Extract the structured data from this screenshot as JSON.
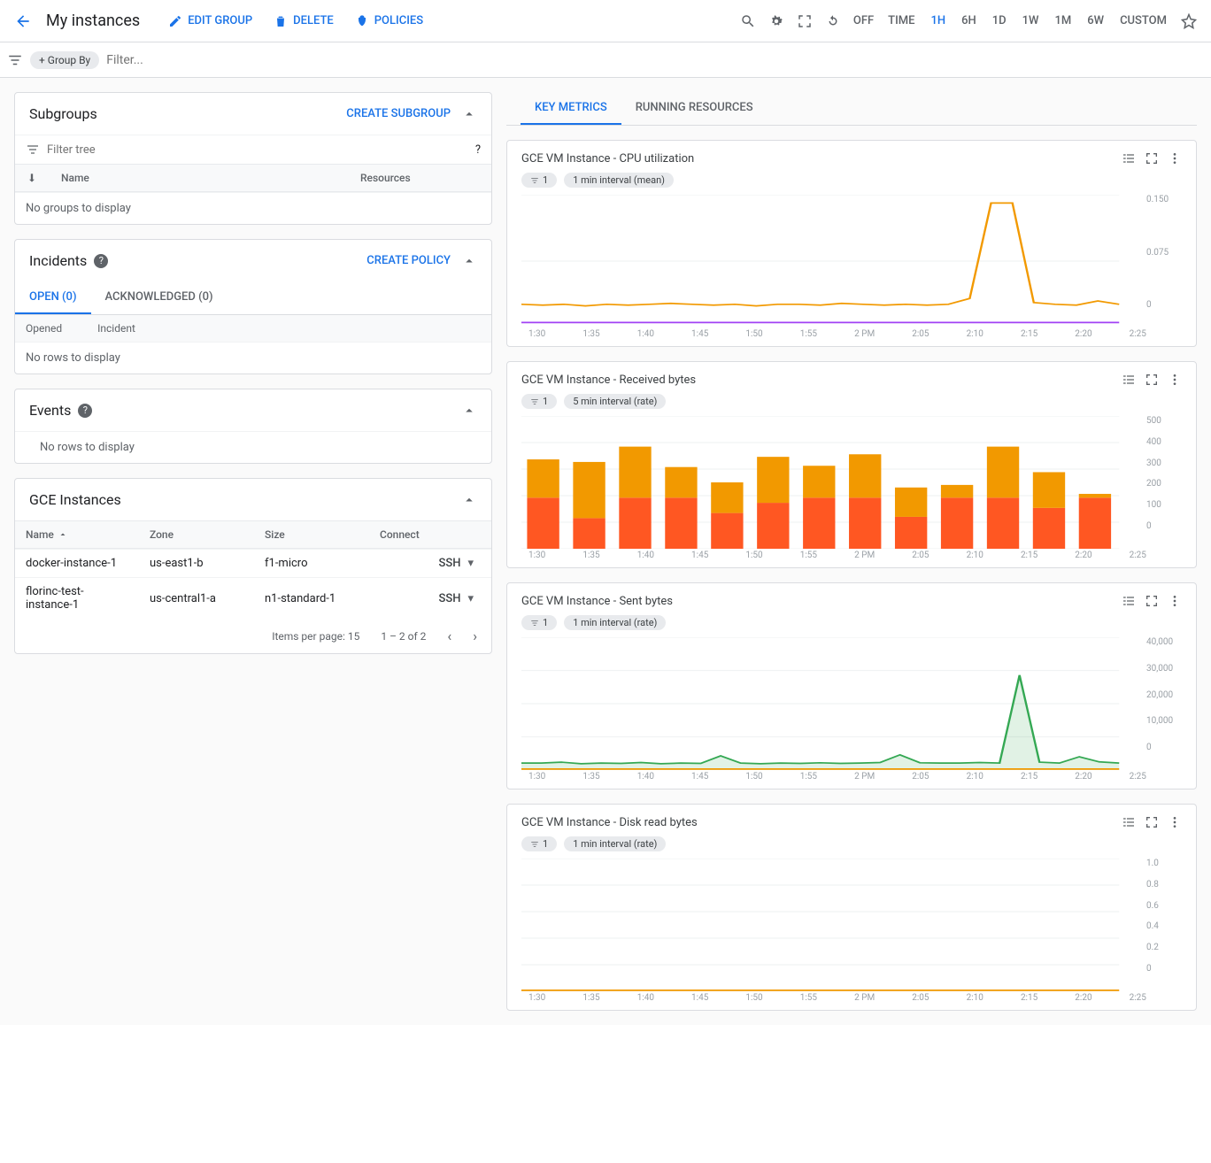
{
  "topbar": {
    "title": "My instances",
    "edit": "EDIT GROUP",
    "delete": "DELETE",
    "policies": "POLICIES",
    "off": "OFF",
    "time_label": "TIME",
    "ranges": [
      "1H",
      "6H",
      "1D",
      "1W",
      "1M",
      "6W",
      "CUSTOM"
    ],
    "active_range": "1H"
  },
  "filterbar": {
    "groupby": "+ Group By",
    "placeholder": "Filter..."
  },
  "subgroups": {
    "title": "Subgroups",
    "create": "CREATE SUBGROUP",
    "filter_placeholder": "Filter tree",
    "col_name": "Name",
    "col_resources": "Resources",
    "empty": "No groups to display"
  },
  "incidents": {
    "title": "Incidents",
    "create": "CREATE POLICY",
    "tab_open": "OPEN (0)",
    "tab_ack": "ACKNOWLEDGED (0)",
    "col_opened": "Opened",
    "col_incident": "Incident",
    "empty": "No rows to display"
  },
  "events": {
    "title": "Events",
    "empty": "No rows to display"
  },
  "instances": {
    "title": "GCE Instances",
    "col_name": "Name",
    "col_zone": "Zone",
    "col_size": "Size",
    "col_connect": "Connect",
    "rows": [
      {
        "name": "docker-instance-1",
        "zone": "us-east1-b",
        "size": "f1-micro",
        "connect": "SSH"
      },
      {
        "name": "florinc-test-instance-1",
        "zone": "us-central1-a",
        "size": "n1-standard-1",
        "connect": "SSH"
      }
    ],
    "items_per_page_label": "Items per page:",
    "items_per_page": "15",
    "range": "1 – 2 of 2"
  },
  "righttabs": {
    "key": "KEY METRICS",
    "run": "RUNNING RESOURCES"
  },
  "xlabels": [
    "1:30",
    "1:35",
    "1:40",
    "1:45",
    "1:50",
    "1:55",
    "2 PM",
    "2:05",
    "2:10",
    "2:15",
    "2:20",
    "2:25"
  ],
  "charts": {
    "cpu": {
      "type": "line",
      "title": "GCE VM Instance - CPU utilization",
      "filter_chip": "1",
      "interval": "1 min interval (mean)",
      "ylabels": [
        "0.150",
        "0.075",
        "0"
      ],
      "series1_color": "#f29900",
      "series2_color": "#a142f4",
      "series1": [
        0.028,
        0.027,
        0.028,
        0.026,
        0.028,
        0.027,
        0.028,
        0.029,
        0.028,
        0.027,
        0.028,
        0.026,
        0.028,
        0.028,
        0.027,
        0.029,
        0.028,
        0.027,
        0.028,
        0.027,
        0.028,
        0.035,
        0.15,
        0.15,
        0.03,
        0.028,
        0.027,
        0.032,
        0.028
      ],
      "series2": [
        0.006,
        0.006,
        0.006,
        0.006,
        0.006,
        0.006,
        0.006,
        0.006,
        0.006,
        0.006,
        0.006,
        0.006,
        0.006,
        0.006,
        0.006,
        0.006,
        0.006,
        0.006,
        0.006,
        0.006,
        0.006,
        0.006,
        0.006,
        0.006,
        0.006,
        0.006,
        0.006,
        0.006,
        0.006
      ],
      "ylim": [
        0,
        0.16
      ]
    },
    "recv": {
      "type": "stacked-bar",
      "title": "GCE VM Instance - Received bytes",
      "filter_chip": "1",
      "interval": "5 min interval (rate)",
      "ylabels": [
        "500",
        "400",
        "300",
        "200",
        "100",
        "0"
      ],
      "bottom_color": "#ff5722",
      "top_color": "#f29900",
      "bars": [
        {
          "b": 200,
          "t": 150
        },
        {
          "b": 120,
          "t": 220
        },
        {
          "b": 200,
          "t": 200
        },
        {
          "b": 200,
          "t": 120
        },
        {
          "b": 140,
          "t": 120
        },
        {
          "b": 180,
          "t": 180
        },
        {
          "b": 200,
          "t": 125
        },
        {
          "b": 200,
          "t": 170
        },
        {
          "b": 125,
          "t": 115
        },
        {
          "b": 200,
          "t": 50
        },
        {
          "b": 200,
          "t": 200
        },
        {
          "b": 160,
          "t": 140
        },
        {
          "b": 200,
          "t": 15
        }
      ],
      "ylim": [
        0,
        520
      ]
    },
    "sent": {
      "type": "area",
      "title": "GCE VM Instance - Sent bytes",
      "filter_chip": "1",
      "interval": "1 min interval (rate)",
      "ylabels": [
        "40,000",
        "30,000",
        "20,000",
        "10,000",
        "0"
      ],
      "area_color": "#34a853",
      "baseline_color": "#f29900",
      "series": [
        2200,
        2200,
        2500,
        2000,
        2200,
        2100,
        2400,
        2000,
        2200,
        2100,
        4500,
        2200,
        2000,
        2200,
        2100,
        2300,
        2100,
        2200,
        2400,
        4800,
        2300,
        2200,
        2200,
        2400,
        2200,
        30000,
        2500,
        2200,
        4200,
        2600,
        2200
      ],
      "ylim": [
        0,
        42000
      ]
    },
    "disk": {
      "type": "line",
      "title": "GCE VM Instance - Disk read bytes",
      "filter_chip": "1",
      "interval": "1 min interval (rate)",
      "ylabels": [
        "1.0",
        "0.8",
        "0.6",
        "0.4",
        "0.2",
        "0"
      ],
      "line_color": "#f29900",
      "series": [
        0,
        0,
        0,
        0,
        0,
        0,
        0,
        0,
        0,
        0,
        0,
        0,
        0,
        0,
        0,
        0,
        0,
        0,
        0,
        0,
        0,
        0,
        0,
        0,
        0,
        0,
        0,
        0,
        0
      ],
      "ylim": [
        0,
        1.05
      ]
    }
  }
}
